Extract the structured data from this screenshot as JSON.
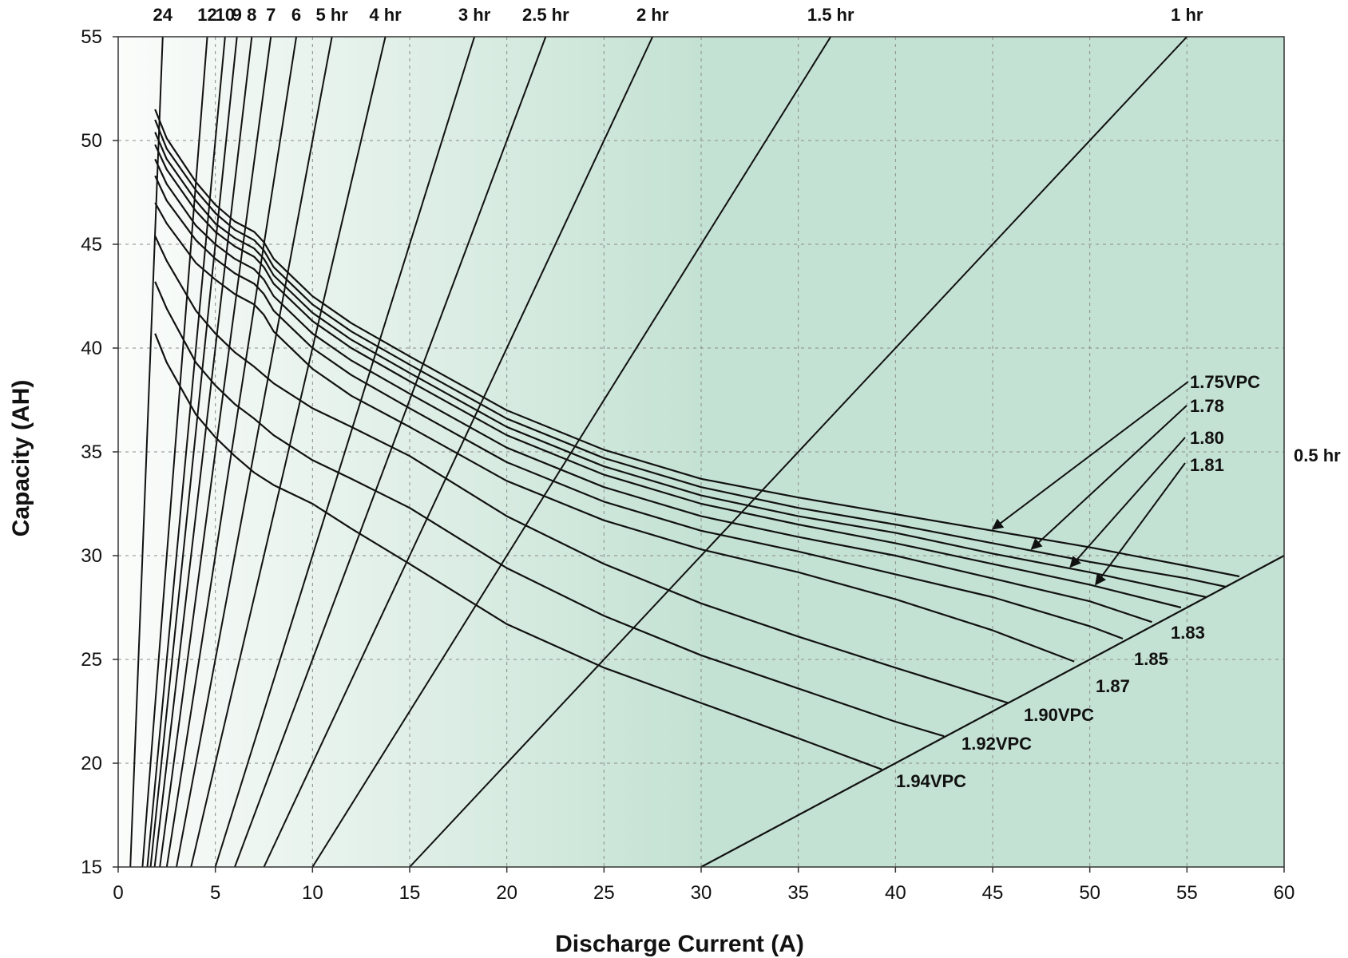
{
  "chart_data": {
    "type": "line",
    "xlabel": "Discharge Current (A)",
    "ylabel": "Capacity (AH)",
    "xlim": [
      0,
      60
    ],
    "ylim": [
      15,
      55
    ],
    "xticks": [
      "0",
      "5",
      "10",
      "15",
      "20",
      "25",
      "30",
      "35",
      "40",
      "45",
      "50",
      "55",
      "60"
    ],
    "yticks": [
      "15",
      "20",
      "25",
      "30",
      "35",
      "40",
      "45",
      "50",
      "55"
    ],
    "grid": true,
    "background_gradient": [
      "#fbfcfb",
      "#c4e2d3"
    ],
    "hour_lines": [
      {
        "label": "24",
        "hours": 24
      },
      {
        "label": "12",
        "hours": 12
      },
      {
        "label": "10",
        "hours": 10
      },
      {
        "label": "9",
        "hours": 9
      },
      {
        "label": "8",
        "hours": 8
      },
      {
        "label": "7",
        "hours": 7
      },
      {
        "label": "6",
        "hours": 6
      },
      {
        "label": "5 hr",
        "hours": 5
      },
      {
        "label": "4 hr",
        "hours": 4
      },
      {
        "label": "3 hr",
        "hours": 3
      },
      {
        "label": "2.5 hr",
        "hours": 2.5
      },
      {
        "label": "2 hr",
        "hours": 2
      },
      {
        "label": "1.5 hr",
        "hours": 1.5
      },
      {
        "label": "1 hr",
        "hours": 1
      },
      {
        "label": "0.5 hr",
        "hours": 0.5
      }
    ],
    "series": [
      {
        "name": "1.75VPC",
        "x": [
          1.9,
          2.5,
          4,
          5,
          6,
          7,
          7.5,
          8,
          10,
          12,
          15,
          20,
          25,
          30,
          35,
          40,
          45,
          50,
          55,
          57.7
        ],
        "y": [
          51.5,
          50.1,
          48.0,
          46.9,
          46.1,
          45.6,
          45.1,
          44.3,
          42.5,
          41.2,
          39.6,
          37.0,
          35.1,
          33.7,
          32.8,
          32.0,
          31.2,
          30.4,
          29.5,
          29.0
        ]
      },
      {
        "name": "1.78",
        "x": [
          1.9,
          2.5,
          4,
          5,
          6,
          7,
          7.5,
          8,
          10,
          12,
          15,
          20,
          25,
          30,
          35,
          40,
          45,
          50,
          55,
          57.0
        ],
        "y": [
          51.0,
          49.6,
          47.6,
          46.5,
          45.7,
          45.2,
          44.7,
          43.9,
          42.1,
          40.8,
          39.2,
          36.6,
          34.7,
          33.3,
          32.3,
          31.5,
          30.6,
          29.7,
          28.9,
          28.5
        ]
      },
      {
        "name": "1.80",
        "x": [
          1.9,
          2.5,
          4,
          5,
          6,
          7,
          7.5,
          8,
          10,
          12,
          15,
          20,
          25,
          30,
          35,
          40,
          45,
          50,
          55,
          56.0
        ],
        "y": [
          50.4,
          49.1,
          47.1,
          46.0,
          45.3,
          44.8,
          44.3,
          43.5,
          41.7,
          40.4,
          38.8,
          36.2,
          34.3,
          32.9,
          31.9,
          31.1,
          30.1,
          29.2,
          28.2,
          28.0
        ]
      },
      {
        "name": "1.81",
        "x": [
          1.9,
          2.5,
          4,
          5,
          6,
          7,
          7.5,
          8,
          10,
          12,
          15,
          20,
          25,
          30,
          35,
          40,
          45,
          50,
          54.7
        ],
        "y": [
          49.8,
          48.6,
          46.6,
          45.6,
          44.9,
          44.4,
          43.9,
          43.1,
          41.3,
          40.0,
          38.4,
          35.8,
          33.9,
          32.5,
          31.5,
          30.6,
          29.6,
          28.6,
          27.5
        ]
      },
      {
        "name": "1.83",
        "x": [
          1.9,
          2.5,
          4,
          5,
          6,
          7,
          7.5,
          8,
          10,
          12,
          15,
          20,
          25,
          30,
          35,
          40,
          45,
          50,
          53.2
        ],
        "y": [
          49.1,
          47.9,
          45.9,
          45.0,
          44.3,
          43.8,
          43.3,
          42.5,
          40.7,
          39.4,
          37.8,
          35.2,
          33.3,
          31.9,
          30.9,
          30.0,
          28.9,
          27.8,
          26.8
        ]
      },
      {
        "name": "1.85",
        "x": [
          1.9,
          2.5,
          4,
          5,
          6,
          7,
          7.5,
          8,
          10,
          12,
          15,
          20,
          25,
          30,
          35,
          40,
          45,
          50,
          51.7
        ],
        "y": [
          48.3,
          47.1,
          45.2,
          44.3,
          43.6,
          43.1,
          42.6,
          41.8,
          40.0,
          38.7,
          37.1,
          34.5,
          32.6,
          31.2,
          30.2,
          29.1,
          28.0,
          26.6,
          26.0
        ]
      },
      {
        "name": "1.87",
        "x": [
          1.9,
          2.5,
          4,
          5,
          6,
          7,
          7.5,
          8,
          10,
          12,
          15,
          20,
          25,
          30,
          35,
          40,
          45,
          49.2
        ],
        "y": [
          47.0,
          46.0,
          44.1,
          43.3,
          42.6,
          42.1,
          41.6,
          40.8,
          39.0,
          37.7,
          36.2,
          33.6,
          31.7,
          30.3,
          29.2,
          27.9,
          26.4,
          24.9
        ]
      },
      {
        "name": "1.90VPC",
        "x": [
          1.9,
          2.5,
          4,
          5,
          6,
          7,
          7.5,
          8,
          10,
          12,
          15,
          20,
          25,
          30,
          35,
          40,
          45.8
        ],
        "y": [
          45.4,
          44.2,
          41.8,
          40.7,
          39.8,
          39.1,
          38.7,
          38.3,
          37.1,
          36.2,
          34.8,
          31.9,
          29.6,
          27.7,
          26.1,
          24.6,
          22.9
        ]
      },
      {
        "name": "1.92VPC",
        "x": [
          1.9,
          2.5,
          4,
          5,
          6,
          7,
          7.5,
          8,
          10,
          12,
          15,
          20,
          25,
          30,
          35,
          40,
          42.5
        ],
        "y": [
          43.2,
          41.9,
          39.3,
          38.2,
          37.3,
          36.6,
          36.2,
          35.8,
          34.6,
          33.7,
          32.3,
          29.4,
          27.1,
          25.2,
          23.6,
          22.0,
          21.3
        ]
      },
      {
        "name": "1.94VPC",
        "x": [
          1.9,
          2.5,
          4,
          5,
          6,
          7,
          7.5,
          8,
          10,
          12,
          15,
          20,
          25,
          30,
          35,
          39.3
        ],
        "y": [
          40.7,
          39.3,
          36.8,
          35.7,
          34.8,
          34.0,
          33.7,
          33.4,
          32.5,
          31.3,
          29.6,
          26.7,
          24.6,
          22.9,
          21.2,
          19.7
        ]
      },
      {
        "name": "0.5 hr",
        "x": [
          30.0,
          60.0
        ],
        "y": [
          15.0,
          30.0
        ]
      }
    ],
    "annotations": [
      {
        "text": "1.75VPC",
        "target_series": "1.75VPC"
      },
      {
        "text": "1.78",
        "target_series": "1.78"
      },
      {
        "text": "1.80",
        "target_series": "1.80"
      },
      {
        "text": "1.81",
        "target_series": "1.81"
      },
      {
        "text": "1.83"
      },
      {
        "text": "1.85"
      },
      {
        "text": "1.87"
      },
      {
        "text": "1.90VPC"
      },
      {
        "text": "1.92VPC"
      },
      {
        "text": "1.94VPC"
      },
      {
        "text": "0.5 hr"
      }
    ]
  }
}
